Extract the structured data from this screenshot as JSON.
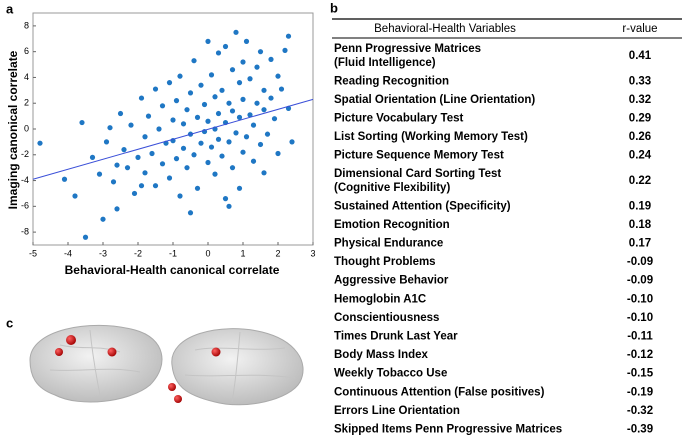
{
  "panel_labels": [
    "a",
    "b",
    "c"
  ],
  "chart_data": {
    "type": "scatter",
    "x_label": "Behavioral-Health canonical correlate",
    "y_label": "Imaging canonical correlate",
    "color": "#1f77c4",
    "fit_color": "#3a4fd8",
    "xlim": [
      -5,
      3
    ],
    "ylim": [
      -9,
      9
    ],
    "xticks": [
      -5,
      -4,
      -3,
      -2,
      -1,
      0,
      1,
      2,
      3
    ],
    "yticks": [
      -8,
      -6,
      -4,
      -2,
      0,
      2,
      4,
      6,
      8
    ],
    "x": [
      -4.8,
      -4.1,
      -3.8,
      -3.5,
      -3.0,
      -3.6,
      -3.3,
      -3.1,
      -2.9,
      -2.8,
      -2.7,
      -2.6,
      -2.5,
      -2.4,
      -2.3,
      -2.2,
      -2.1,
      -2.0,
      -1.9,
      -1.8,
      -1.8,
      -1.7,
      -1.6,
      -1.5,
      -1.5,
      -1.4,
      -1.3,
      -1.3,
      -1.2,
      -1.1,
      -1.1,
      -1.0,
      -1.0,
      -0.9,
      -0.9,
      -0.8,
      -0.8,
      -0.7,
      -0.7,
      -0.6,
      -0.6,
      -0.5,
      -0.5,
      -0.4,
      -0.4,
      -0.3,
      -0.3,
      -0.2,
      -0.2,
      -0.1,
      -0.1,
      0.0,
      0.0,
      0.0,
      0.1,
      0.1,
      0.2,
      0.2,
      0.2,
      0.3,
      0.3,
      0.3,
      0.4,
      0.4,
      0.5,
      0.5,
      0.5,
      0.6,
      0.6,
      0.7,
      0.7,
      0.7,
      0.8,
      0.8,
      0.9,
      0.9,
      1.0,
      1.0,
      1.0,
      1.1,
      1.1,
      1.2,
      1.2,
      1.3,
      1.3,
      1.4,
      1.4,
      1.5,
      1.5,
      1.6,
      1.6,
      1.7,
      1.8,
      1.8,
      1.9,
      2.0,
      2.0,
      2.1,
      2.2,
      2.3,
      2.3,
      2.4,
      -0.5,
      0.6,
      -1.9,
      -2.6,
      1.6,
      0.9
    ],
    "y": [
      -1.1,
      -3.9,
      -5.2,
      -8.4,
      -7.0,
      0.5,
      -2.2,
      -3.5,
      -1.0,
      0.1,
      -4.1,
      -2.8,
      1.2,
      -1.6,
      -3.0,
      0.3,
      -5.0,
      -2.2,
      2.4,
      -0.6,
      -3.4,
      1.0,
      -1.9,
      3.1,
      -4.4,
      0.0,
      -2.7,
      1.8,
      -1.1,
      3.6,
      -3.8,
      0.7,
      -0.9,
      2.2,
      -2.3,
      -5.2,
      4.1,
      0.4,
      -1.5,
      1.5,
      -3.0,
      2.8,
      -0.4,
      5.3,
      -2.0,
      0.9,
      -4.6,
      3.4,
      -1.1,
      1.9,
      -0.2,
      6.8,
      -2.6,
      0.6,
      4.2,
      -1.4,
      2.5,
      -3.5,
      0.0,
      5.9,
      1.2,
      -0.8,
      3.0,
      -2.1,
      6.4,
      0.5,
      -5.4,
      2.0,
      -1.0,
      4.6,
      -3.0,
      1.4,
      7.5,
      -0.3,
      3.6,
      0.9,
      -1.8,
      5.2,
      2.3,
      -0.6,
      6.8,
      1.1,
      3.9,
      -2.5,
      0.3,
      4.8,
      2.0,
      -1.2,
      6.0,
      1.5,
      3.0,
      -0.4,
      5.4,
      2.4,
      0.8,
      4.1,
      -1.9,
      3.1,
      6.1,
      7.2,
      1.6,
      -1.0,
      -6.5,
      -6.0,
      -4.4,
      -6.2,
      -3.4,
      -4.6
    ],
    "fit_line": {
      "x": [
        -5,
        3
      ],
      "y": [
        -3.9,
        2.3
      ]
    }
  },
  "table": {
    "header": [
      "Behavioral-Health Variables",
      "r-value"
    ],
    "rows": [
      {
        "variable": [
          "Penn Progressive Matrices",
          "(Fluid Intelligence)"
        ],
        "r": "0.41"
      },
      {
        "variable": [
          "Reading Recognition"
        ],
        "r": "0.33"
      },
      {
        "variable": [
          "Spatial Orientation (Line Orientation)"
        ],
        "r": "0.32"
      },
      {
        "variable": [
          "Picture Vocabulary Test"
        ],
        "r": "0.29"
      },
      {
        "variable": [
          "List Sorting (Working Memory  Test)"
        ],
        "r": "0.26"
      },
      {
        "variable": [
          "Picture Sequence Memory  Test"
        ],
        "r": "0.24"
      },
      {
        "variable": [
          "Dimensional Card Sorting Test",
          "(Cognitive Flexibility)"
        ],
        "r": "0.22"
      },
      {
        "variable": [
          "Sustained Attention (Specificity)"
        ],
        "r": "0.19"
      },
      {
        "variable": [
          "Emotion Recognition"
        ],
        "r": "0.18"
      },
      {
        "variable": [
          "Physical Endurance"
        ],
        "r": "0.17"
      },
      {
        "variable": [
          "Thought Problems"
        ],
        "r": "-0.09"
      },
      {
        "variable": [
          "Aggressive Behavior"
        ],
        "r": "-0.09"
      },
      {
        "variable": [
          "Hemoglobin A1C"
        ],
        "r": "-0.10"
      },
      {
        "variable": [
          "Conscientiousness"
        ],
        "r": "-0.10"
      },
      {
        "variable": [
          "Times Drunk Last Year"
        ],
        "r": "-0.11"
      },
      {
        "variable": [
          "Body Mass Index"
        ],
        "r": "-0.12"
      },
      {
        "variable": [
          "Weekly Tobacco Use"
        ],
        "r": "-0.15"
      },
      {
        "variable": [
          "Continuous Attention (False positives)"
        ],
        "r": "-0.19"
      },
      {
        "variable": [
          "Errors Line Orientation"
        ],
        "r": "-0.32"
      },
      {
        "variable": [
          "Skipped Items Penn Progressive Matrices"
        ],
        "r": "-0.39"
      }
    ]
  }
}
